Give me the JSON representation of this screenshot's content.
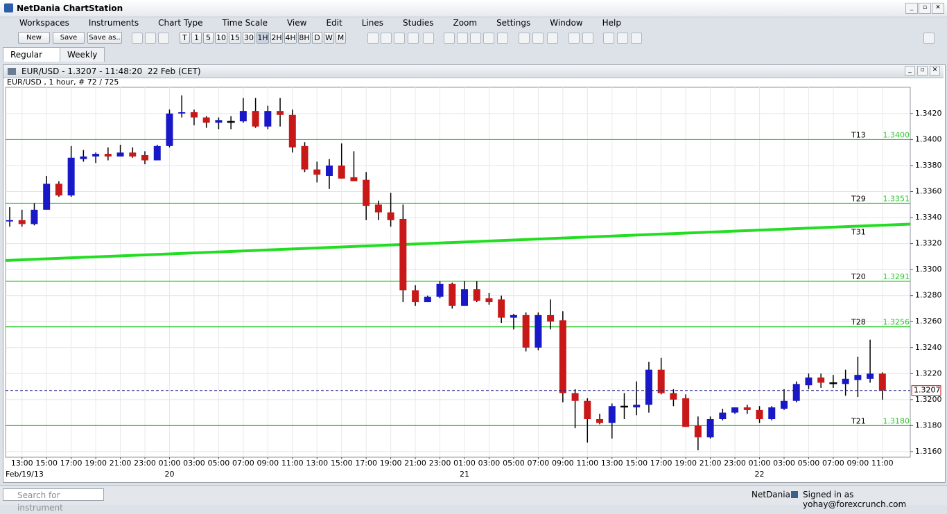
{
  "window": {
    "title": "NetDania ChartStation"
  },
  "menu": [
    "Workspaces",
    "Instruments",
    "Chart Type",
    "Time Scale",
    "View",
    "Edit",
    "Lines",
    "Studies",
    "Zoom",
    "Settings",
    "Window",
    "Help"
  ],
  "toolbar": {
    "file_buttons": [
      "New",
      "Save",
      "Save as.."
    ],
    "time_buttons": [
      "T",
      "1",
      "5",
      "10",
      "15",
      "30",
      "1H",
      "2H",
      "4H",
      "8H",
      "D",
      "W",
      "M"
    ]
  },
  "tabs": [
    "Regular",
    "Weekly"
  ],
  "chart_window": {
    "title": "EUR/USD - 1.3207 - 11:48:20  22 Feb (CET)"
  },
  "chart_data": {
    "type": "candlestick",
    "title": "EUR/USD , 1 hour, # 72 / 725",
    "categories": [
      null,
      "13:00",
      null,
      "15:00",
      null,
      "17:00",
      null,
      "19:00",
      null,
      "21:00",
      null,
      "23:00",
      null,
      "01:00",
      null,
      "03:00",
      null,
      "05:00",
      null,
      "07:00",
      null,
      "09:00",
      null,
      "11:00",
      null,
      "13:00",
      null,
      "15:00",
      null,
      "17:00",
      null,
      "19:00",
      null,
      "21:00",
      null,
      "23:00",
      null,
      "01:00",
      null,
      "03:00",
      null,
      "05:00",
      null,
      "07:00",
      null,
      "09:00",
      null,
      "11:00",
      null,
      "13:00",
      null,
      "15:00",
      null,
      "17:00",
      null,
      "19:00",
      null,
      "21:00",
      null,
      "23:00",
      null,
      "01:00",
      null,
      "03:00",
      null,
      "05:00",
      null,
      "07:00",
      null,
      "09:00",
      null,
      "11:00"
    ],
    "dates": [
      "Feb/19/13",
      null,
      null,
      null,
      null,
      null,
      null,
      null,
      null,
      null,
      null,
      null,
      null,
      "20",
      null,
      null,
      null,
      null,
      null,
      null,
      null,
      null,
      null,
      null,
      null,
      null,
      null,
      null,
      null,
      null,
      null,
      null,
      null,
      null,
      null,
      null,
      null,
      "21",
      null,
      null,
      null,
      null,
      null,
      null,
      null,
      null,
      null,
      null,
      null,
      null,
      null,
      null,
      null,
      null,
      null,
      null,
      null,
      null,
      null,
      null,
      null,
      "22",
      null,
      null,
      null,
      null,
      null,
      null,
      null,
      null,
      null,
      null
    ],
    "open": [
      1.3337,
      1.3338,
      1.3335,
      1.3346,
      1.3366,
      1.3357,
      1.3385,
      1.3387,
      1.3389,
      1.3387,
      1.339,
      1.3388,
      1.3384,
      1.3395,
      1.342,
      1.3421,
      1.3417,
      1.3413,
      1.3414,
      1.3414,
      1.3422,
      1.341,
      1.3422,
      1.3419,
      1.3395,
      1.3377,
      1.3372,
      1.338,
      1.3371,
      1.3369,
      1.335,
      1.3344,
      1.3339,
      1.3284,
      1.3275,
      1.3279,
      1.3289,
      1.3272,
      1.3285,
      1.3278,
      1.3277,
      1.3263,
      1.3265,
      1.324,
      1.3265,
      1.3261,
      1.3205,
      1.3199,
      1.3185,
      1.3182,
      1.3195,
      1.3194,
      1.3196,
      1.3223,
      1.3205,
      1.3201,
      1.318,
      1.3171,
      1.3185,
      1.319,
      1.3194,
      1.3192,
      1.3185,
      1.3193,
      1.3199,
      1.3211,
      1.3217,
      1.3213,
      1.3212,
      1.3215,
      1.3216,
      1.322
    ],
    "high": [
      1.3348,
      1.3346,
      1.3351,
      1.3372,
      1.3368,
      1.3395,
      1.3392,
      1.339,
      1.3394,
      1.3396,
      1.3394,
      1.3391,
      1.3396,
      1.3423,
      1.3434,
      1.3423,
      1.3418,
      1.3417,
      1.3418,
      1.3432,
      1.3432,
      1.3426,
      1.3432,
      1.3423,
      1.3398,
      1.3383,
      1.3385,
      1.3397,
      1.3391,
      1.3375,
      1.3353,
      1.3359,
      1.335,
      1.3288,
      1.328,
      1.3291,
      1.329,
      1.3291,
      1.3291,
      1.3282,
      1.328,
      1.3266,
      1.3267,
      1.3267,
      1.3277,
      1.3268,
      1.3208,
      1.3201,
      1.3189,
      1.3197,
      1.3205,
      1.3214,
      1.3229,
      1.3232,
      1.3208,
      1.3204,
      1.3187,
      1.3187,
      1.3193,
      1.3194,
      1.3196,
      1.3195,
      1.3195,
      1.3208,
      1.3214,
      1.322,
      1.322,
      1.3219,
      1.3223,
      1.3233,
      1.3246,
      1.3221
    ],
    "low": [
      1.3333,
      1.3333,
      1.3334,
      1.3346,
      1.3356,
      1.3356,
      1.3383,
      1.3382,
      1.3384,
      1.3387,
      1.3386,
      1.3381,
      1.3384,
      1.3394,
      1.3417,
      1.3411,
      1.3409,
      1.3408,
      1.3408,
      1.3413,
      1.3409,
      1.3408,
      1.341,
      1.339,
      1.3375,
      1.3367,
      1.3362,
      1.337,
      1.3368,
      1.3338,
      1.3338,
      1.3333,
      1.3275,
      1.3272,
      1.3275,
      1.3278,
      1.327,
      1.3272,
      1.3275,
      1.3273,
      1.3259,
      1.3254,
      1.3237,
      1.3238,
      1.3254,
      1.3198,
      1.3178,
      1.3167,
      1.3181,
      1.317,
      1.3185,
      1.3188,
      1.319,
      1.3204,
      1.3195,
      1.3179,
      1.3161,
      1.317,
      1.3184,
      1.3189,
      1.3189,
      1.3182,
      1.3184,
      1.3192,
      1.3198,
      1.3208,
      1.3209,
      1.3209,
      1.3203,
      1.3202,
      1.3213,
      1.32
    ],
    "close": [
      1.3338,
      1.3335,
      1.3346,
      1.3366,
      1.3357,
      1.3386,
      1.3387,
      1.3389,
      1.3387,
      1.339,
      1.3387,
      1.3384,
      1.3395,
      1.342,
      1.3421,
      1.3417,
      1.3413,
      1.3415,
      1.3414,
      1.3422,
      1.341,
      1.3422,
      1.3419,
      1.3394,
      1.3377,
      1.3373,
      1.338,
      1.337,
      1.3368,
      1.3349,
      1.3344,
      1.3338,
      1.3284,
      1.3275,
      1.3279,
      1.3289,
      1.3272,
      1.3285,
      1.3276,
      1.3275,
      1.3263,
      1.3265,
      1.324,
      1.3265,
      1.326,
      1.3205,
      1.3199,
      1.3185,
      1.3182,
      1.3195,
      1.3195,
      1.3196,
      1.3223,
      1.3205,
      1.32,
      1.3179,
      1.3171,
      1.3185,
      1.319,
      1.3194,
      1.3192,
      1.3185,
      1.3194,
      1.3199,
      1.3212,
      1.3217,
      1.3213,
      1.3213,
      1.3216,
      1.3219,
      1.322,
      1.3207
    ],
    "up_color": "#1818c8",
    "down_color": "#c81818",
    "flat_color": "#000000",
    "ylim": [
      1.31557,
      1.34402
    ],
    "yticks": [
      {
        "value": 1.316,
        "label": "1.3160"
      },
      {
        "value": 1.318,
        "label": "1.3180"
      },
      {
        "value": 1.32,
        "label": "1.3200"
      },
      {
        "value": 1.322,
        "label": "1.3220"
      },
      {
        "value": 1.324,
        "label": "1.3240"
      },
      {
        "value": 1.326,
        "label": "1.3260"
      },
      {
        "value": 1.328,
        "label": "1.3280"
      },
      {
        "value": 1.33,
        "label": "1.3300"
      },
      {
        "value": 1.332,
        "label": "1.3320"
      },
      {
        "value": 1.334,
        "label": "1.3340"
      },
      {
        "value": 1.336,
        "label": "1.3360"
      },
      {
        "value": 1.338,
        "label": "1.3380"
      },
      {
        "value": 1.34,
        "label": "1.3400"
      },
      {
        "value": 1.342,
        "label": "1.3420"
      }
    ],
    "grid": true,
    "levels": {
      "names": [
        "T13",
        "T29",
        "T20",
        "T28",
        "T21"
      ],
      "values": [
        1.34,
        1.3351,
        1.3291,
        1.3256,
        1.318
      ],
      "value_labels": [
        "1.3400",
        "1.3351",
        "1.3291",
        "1.3256",
        "1.3180"
      ],
      "color": "#2ec82e"
    },
    "trend_line": {
      "name": "T31",
      "values": [
        1.3307,
        1.3335
      ],
      "color": "#22dd22"
    },
    "last_price": {
      "value": 1.3207,
      "color": "#1a1a80"
    }
  },
  "status_bar": {
    "search_placeholder": "Search for instrument",
    "brand": "NetDania",
    "signed_in": "Signed in as yohay@forexcrunch.com"
  }
}
